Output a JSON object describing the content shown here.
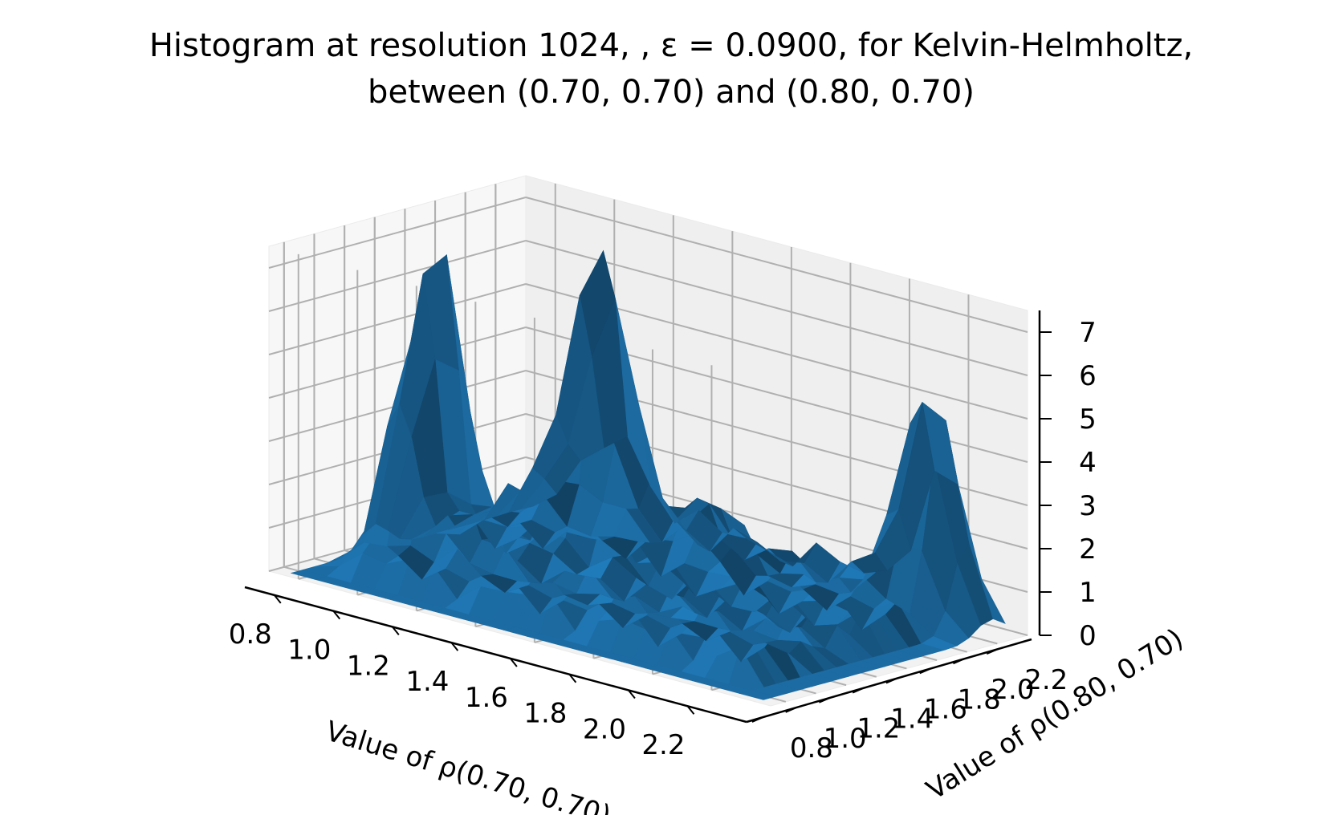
{
  "chart_data": {
    "type": "surface",
    "title_line1": "Histogram at resolution 1024, , ε = 0.0900, for Kelvin-Helmholtz,",
    "title_line2": "between (0.70, 0.70) and (0.80, 0.70)",
    "xlabel": "Value of ρ(0.70, 0.70)",
    "ylabel": "Value of ρ(0.80, 0.70)",
    "xlim": [
      0.7,
      2.4
    ],
    "ylim": [
      0.7,
      2.4
    ],
    "zlim": [
      0,
      7.5
    ],
    "x_ticks": [
      "0.8",
      "1.0",
      "1.2",
      "1.4",
      "1.6",
      "1.8",
      "2.0",
      "2.2"
    ],
    "y_ticks": [
      "0.8",
      "1.0",
      "1.2",
      "1.4",
      "1.6",
      "1.8",
      "2.0",
      "2.2"
    ],
    "z_ticks": [
      "0",
      "1",
      "2",
      "3",
      "4",
      "5",
      "6",
      "7"
    ],
    "grid": true,
    "surface_color": "#1f77b4",
    "peaks": [
      {
        "x": 0.95,
        "y": 1.3,
        "height": 7.2
      },
      {
        "x": 1.05,
        "y": 2.2,
        "height": 6.3
      },
      {
        "x": 2.15,
        "y": 2.25,
        "height": 5.0
      },
      {
        "x": 1.3,
        "y": 1.6,
        "height": 2.0
      },
      {
        "x": 1.5,
        "y": 2.0,
        "height": 1.5
      }
    ]
  }
}
